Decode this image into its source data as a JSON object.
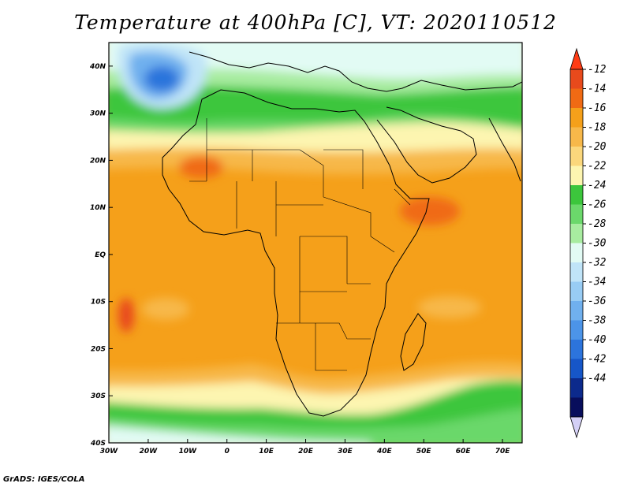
{
  "title": "Temperature at 400hPa [C], VT: 2020110512",
  "credit": "GrADS: IGES/COLA",
  "map": {
    "lon_range": [
      -30,
      75
    ],
    "lat_range": [
      -40,
      45
    ],
    "lon_ticks": [
      "30W",
      "20W",
      "10W",
      "0",
      "10E",
      "20E",
      "30E",
      "40E",
      "50E",
      "60E",
      "70E"
    ],
    "lat_ticks": [
      "40N",
      "30N",
      "20N",
      "10N",
      "EQ",
      "10S",
      "20S",
      "30S",
      "40S"
    ]
  },
  "colorbar": {
    "labels": [
      "-12",
      "-14",
      "-16",
      "-18",
      "-20",
      "-22",
      "-24",
      "-26",
      "-28",
      "-30",
      "-32",
      "-34",
      "-36",
      "-38",
      "-40",
      "-42",
      "-44"
    ],
    "colors": [
      "#e84a1c",
      "#f06a14",
      "#f5a01a",
      "#f7b84a",
      "#fbd77c",
      "#fdf5b0",
      "#3cc63c",
      "#6bd86b",
      "#a8eca0",
      "#e2fbf4",
      "#c0e4f8",
      "#98ccf4",
      "#70b0ee",
      "#4c94e8",
      "#2c74dc",
      "#1656c8",
      "#0c2a8c",
      "#080e5c"
    ],
    "over_color": "#ff3c14",
    "under_color": "#d4d0f6"
  },
  "palette": {
    "green": "#3cc63c",
    "light_green": "#6bd86b",
    "pale_green": "#a8eca0",
    "cyan": "#e2fbf4",
    "pale_blue": "#c0e4f8",
    "mid_blue": "#70b0ee",
    "deep_blue": "#2c74dc",
    "cream": "#fdf5b0",
    "pale_yellow": "#fbd77c",
    "yellow_orange": "#f7b84a",
    "orange": "#f5a01a",
    "dark_orange": "#f06a14",
    "red_orange": "#e84a1c"
  }
}
